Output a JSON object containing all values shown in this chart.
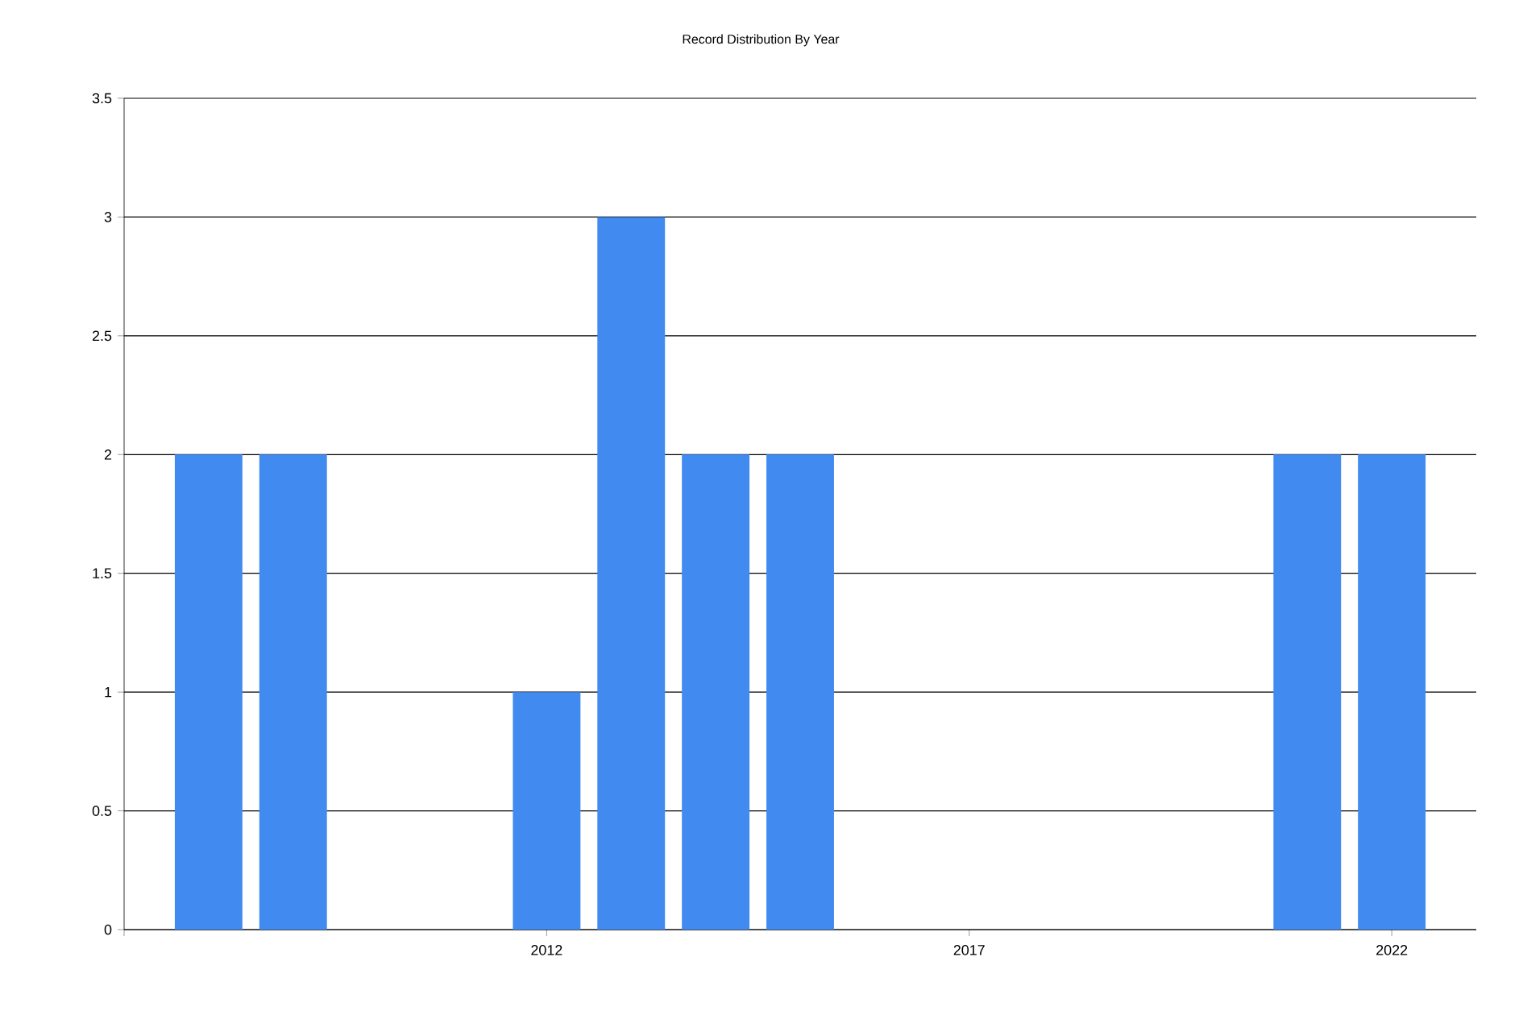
{
  "chart_data": {
    "type": "bar",
    "title": "Record Distribution By Year",
    "x": [
      2008,
      2009,
      2012,
      2013,
      2014,
      2015,
      2021,
      2022
    ],
    "values": [
      2,
      2,
      1,
      3,
      2,
      2,
      2,
      2
    ],
    "color": "#418bf0",
    "xlim": [
      2007,
      2023
    ],
    "xticks": [
      {
        "value": 2007,
        "label": null
      },
      2012,
      2017,
      2022
    ],
    "ylim": [
      0,
      3.5
    ],
    "yticks": [
      0,
      0.5,
      1,
      1.5,
      2,
      2.5,
      3,
      3.5
    ],
    "grid": "y"
  }
}
